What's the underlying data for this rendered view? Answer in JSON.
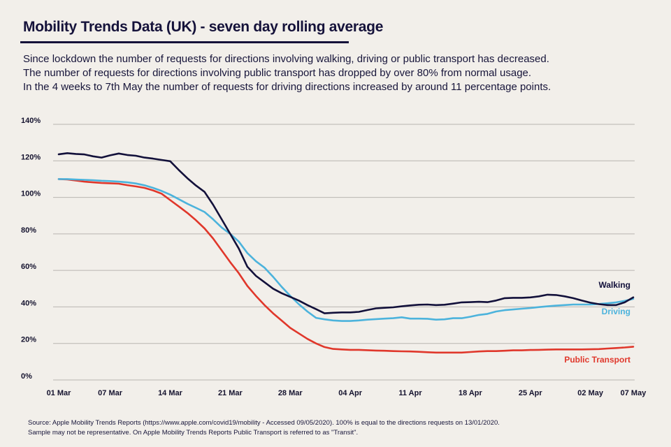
{
  "header": {
    "title": "Mobility Trends Data (UK) - seven day rolling average",
    "intro_lines": [
      "Since lockdown the number of requests for directions involving walking, driving or public transport has decreased.",
      "The number of requests for directions involving public transport has dropped by over 80% from normal usage.",
      "In the 4 weeks to 7th May the number of requests for driving directions increased by around 11 percentage points."
    ]
  },
  "footer": {
    "lines": [
      "Source: Apple Mobility Trends Reports (https://www.apple.com/covid19/mobility - Accessed 09/05/2020). 100% is equal to the directions requests on 13/01/2020.",
      "Sample may not be representative. On Apple Mobility Trends Reports Public Transport is referred to as \"Transit\"."
    ]
  },
  "colors": {
    "background": "#f2efea",
    "grid": "#b8b5b0",
    "walking": "#12103a",
    "driving": "#4cb3dc",
    "public_transport": "#e0372b"
  },
  "chart_data": {
    "type": "line",
    "title": "Mobility Trends Data (UK) - seven day rolling average",
    "xlabel": "",
    "ylabel": "",
    "ylim": [
      0,
      140
    ],
    "yticks": [
      0,
      20,
      40,
      60,
      80,
      100,
      120,
      140
    ],
    "ytick_labels": [
      "0%",
      "20%",
      "40%",
      "60%",
      "80%",
      "100%",
      "120%",
      "140%"
    ],
    "x_start": "01 Mar 2020",
    "x_day_range": [
      0,
      67
    ],
    "xticks": [
      {
        "day": 0,
        "label": "01 Mar"
      },
      {
        "day": 6,
        "label": "07 Mar"
      },
      {
        "day": 13,
        "label": "14 Mar"
      },
      {
        "day": 20,
        "label": "21 Mar"
      },
      {
        "day": 27,
        "label": "28 Mar"
      },
      {
        "day": 34,
        "label": "04 Apr"
      },
      {
        "day": 41,
        "label": "11 Apr"
      },
      {
        "day": 48,
        "label": "18 Apr"
      },
      {
        "day": 55,
        "label": "25 Apr"
      },
      {
        "day": 62,
        "label": "02 May"
      },
      {
        "day": 67,
        "label": "07 May"
      }
    ],
    "grid": true,
    "legend": "inline-right",
    "series": [
      {
        "name": "Walking",
        "color": "#12103a",
        "values": [
          123.6,
          124.2,
          123.8,
          123.5,
          122.5,
          121.8,
          123.0,
          124.0,
          123.2,
          122.8,
          121.8,
          121.2,
          120.5,
          119.8,
          115,
          110.5,
          106.5,
          103,
          96,
          88,
          80,
          72,
          62,
          57,
          53.5,
          50,
          47.5,
          45.5,
          43.5,
          41,
          38.8,
          36.5,
          36.8,
          37,
          37,
          37.3,
          38.3,
          39.2,
          39.5,
          39.8,
          40.3,
          40.8,
          41.2,
          41.3,
          41,
          41.2,
          41.8,
          42.5,
          42.6,
          42.8,
          42.6,
          43.5,
          44.8,
          45,
          45,
          45.2,
          45.8,
          46.7,
          46.5,
          45.8,
          44.8,
          43.5,
          42.3,
          41.5,
          41,
          41,
          42.5,
          45.2
        ]
      },
      {
        "name": "Driving",
        "color": "#4cb3dc",
        "values": [
          110,
          110,
          109.8,
          109.6,
          109.4,
          109.1,
          108.9,
          108.6,
          108.2,
          107.6,
          106.6,
          105.2,
          103.5,
          101.5,
          99,
          96.5,
          94.3,
          92,
          88,
          83.5,
          80,
          75.8,
          69.5,
          65,
          61.5,
          56.5,
          51,
          46,
          41.5,
          37.5,
          34,
          33.2,
          32.6,
          32.3,
          32.3,
          32.6,
          33,
          33.3,
          33.6,
          33.8,
          34.3,
          33.6,
          33.6,
          33.5,
          33,
          33.2,
          33.8,
          33.8,
          34.6,
          35.6,
          36.2,
          37.5,
          38.2,
          38.6,
          39,
          39.4,
          39.9,
          40.3,
          40.7,
          41,
          41.3,
          41.3,
          41.3,
          41.6,
          42,
          42.5,
          43.3,
          44.4
        ]
      },
      {
        "name": "Public Transport",
        "color": "#e0372b",
        "values": [
          110,
          109.8,
          109.2,
          108.6,
          108.2,
          107.9,
          107.7,
          107.5,
          106.7,
          106,
          105.2,
          103.8,
          102,
          98.5,
          95,
          91.5,
          87.5,
          83,
          77.5,
          71,
          64.5,
          58.5,
          51.5,
          46,
          41,
          36.5,
          32.5,
          28.5,
          25.5,
          22.5,
          20,
          18,
          17,
          16.7,
          16.5,
          16.5,
          16.3,
          16.1,
          16,
          15.8,
          15.7,
          15.6,
          15.4,
          15.2,
          15,
          15,
          15,
          15,
          15.3,
          15.6,
          15.8,
          15.8,
          16,
          16.2,
          16.2,
          16.4,
          16.5,
          16.6,
          16.7,
          16.7,
          16.7,
          16.7,
          16.8,
          16.9,
          17.2,
          17.5,
          17.8,
          18.2
        ]
      }
    ]
  }
}
